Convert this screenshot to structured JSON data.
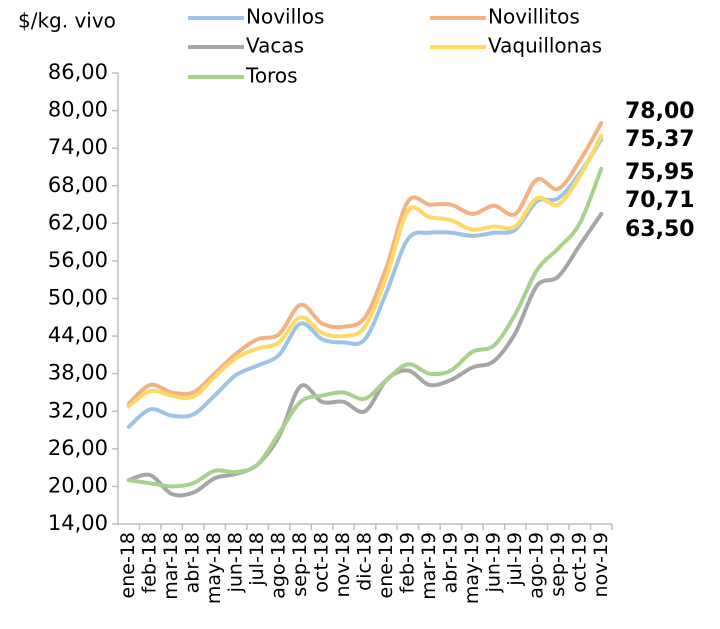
{
  "chart_data": {
    "type": "line",
    "y_label": "$/kg. vivo",
    "categories": [
      "ene-18",
      "feb-18",
      "mar-18",
      "abr-18",
      "may-18",
      "jun-18",
      "jul-18",
      "ago-18",
      "sep-18",
      "oct-18",
      "nov-18",
      "dic-18",
      "ene-19",
      "feb-19",
      "mar-19",
      "abr-19",
      "may-19",
      "jun-19",
      "jul-19",
      "ago-19",
      "sep-19",
      "oct-19",
      "nov-19"
    ],
    "series": [
      {
        "name": "Novillos",
        "color": "#9dc3e6",
        "label_color": "#4f7fbf",
        "values": [
          29.5,
          32.3,
          31.3,
          31.5,
          34.5,
          37.8,
          39.3,
          41,
          46,
          43.5,
          43,
          43.5,
          51,
          59.5,
          60.5,
          60.5,
          60,
          60.5,
          61,
          65.5,
          66,
          70,
          75.37
        ],
        "value_labels": [
          null,
          null,
          null,
          null,
          null,
          null,
          null,
          null,
          null,
          null,
          null,
          null,
          null,
          null,
          null,
          null,
          null,
          null,
          null,
          null,
          null,
          null,
          "75,37"
        ]
      },
      {
        "name": "Novillitos",
        "color": "#f4b183",
        "label_color": "#e09c94",
        "values": [
          33.2,
          36.2,
          35,
          35,
          38,
          41.2,
          43.5,
          44.3,
          49,
          46,
          45.5,
          47,
          55,
          65.5,
          65,
          65,
          63.5,
          64.8,
          63.5,
          69,
          67.5,
          72,
          78
        ],
        "value_labels": [
          null,
          null,
          null,
          null,
          null,
          null,
          null,
          null,
          null,
          null,
          null,
          null,
          null,
          null,
          null,
          null,
          null,
          null,
          null,
          null,
          null,
          null,
          "78,00"
        ]
      },
      {
        "name": "Vacas",
        "color": "#a6a6a6",
        "label_color": "#808080",
        "values": [
          21,
          21.8,
          18.8,
          19,
          21.3,
          22,
          23.5,
          28,
          36,
          33.5,
          33.5,
          32,
          37,
          38.5,
          36.2,
          37,
          39,
          40,
          44.5,
          52,
          53.5,
          58.5,
          63.5
        ],
        "value_labels": [
          null,
          null,
          null,
          null,
          null,
          null,
          null,
          null,
          null,
          null,
          null,
          null,
          null,
          null,
          null,
          null,
          null,
          null,
          null,
          null,
          null,
          null,
          "63,50"
        ]
      },
      {
        "name": "Vaquillonas",
        "color": "#ffd966",
        "label_color": "#ffc000",
        "values": [
          32.8,
          35.2,
          34.5,
          34.3,
          37.5,
          40.5,
          42,
          43,
          47,
          44.5,
          44,
          45.5,
          53.5,
          64,
          63,
          62.5,
          61,
          61.5,
          61.5,
          66,
          65,
          69.5,
          75.95
        ],
        "value_labels": [
          null,
          null,
          null,
          null,
          null,
          null,
          null,
          null,
          null,
          null,
          null,
          null,
          null,
          null,
          null,
          null,
          null,
          null,
          null,
          null,
          null,
          null,
          "75,95"
        ]
      },
      {
        "name": "Toros",
        "color": "#a9d18e",
        "label_color": "#92d050",
        "values": [
          21,
          20.5,
          20,
          20.5,
          22.5,
          22.3,
          23.5,
          28.5,
          33.5,
          34.5,
          35,
          34,
          37,
          39.5,
          38,
          38.5,
          41.5,
          42.5,
          47.5,
          54.5,
          58,
          62,
          70.71
        ],
        "value_labels": [
          null,
          null,
          null,
          null,
          null,
          null,
          null,
          null,
          null,
          null,
          null,
          null,
          null,
          null,
          null,
          null,
          null,
          null,
          null,
          null,
          null,
          null,
          "70,71"
        ]
      }
    ],
    "ylim": [
      14,
      86
    ],
    "yticks": [
      {
        "value": 14,
        "label": "14,00"
      },
      {
        "value": 20,
        "label": "20,00"
      },
      {
        "value": 26,
        "label": "26,00"
      },
      {
        "value": 32,
        "label": "32,00"
      },
      {
        "value": 38,
        "label": "38,00"
      },
      {
        "value": 44,
        "label": "44,00"
      },
      {
        "value": 50,
        "label": "50,00"
      },
      {
        "value": 56,
        "label": "56,00"
      },
      {
        "value": 62,
        "label": "62,00"
      },
      {
        "value": 68,
        "label": "68,00"
      },
      {
        "value": 74,
        "label": "74,00"
      },
      {
        "value": 80,
        "label": "80,00"
      },
      {
        "value": 86,
        "label": "86,00"
      }
    ],
    "grid": false,
    "legend": "top"
  }
}
